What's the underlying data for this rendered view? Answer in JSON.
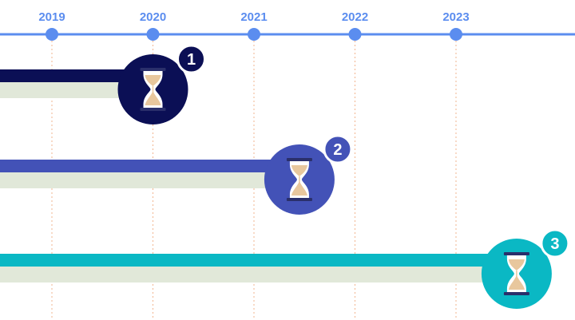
{
  "timeline": {
    "years": [
      "2019",
      "2020",
      "2021",
      "2022",
      "2023"
    ],
    "axis_color": "#5b8def",
    "label_color": "#5b8def",
    "guide_color": "#f2b58f"
  },
  "milestones": [
    {
      "number": "1",
      "end_year": 2020,
      "color": "#0b0f55",
      "shadow_color": "#e1e8d9",
      "icon": "hourglass-icon"
    },
    {
      "number": "2",
      "end_year": 2021.45,
      "color": "#4352b7",
      "shadow_color": "#e1e8d9",
      "icon": "hourglass-icon"
    },
    {
      "number": "3",
      "end_year": 2023.6,
      "color": "#0ab8c4",
      "shadow_color": "#e1e8d9",
      "icon": "hourglass-icon"
    }
  ]
}
